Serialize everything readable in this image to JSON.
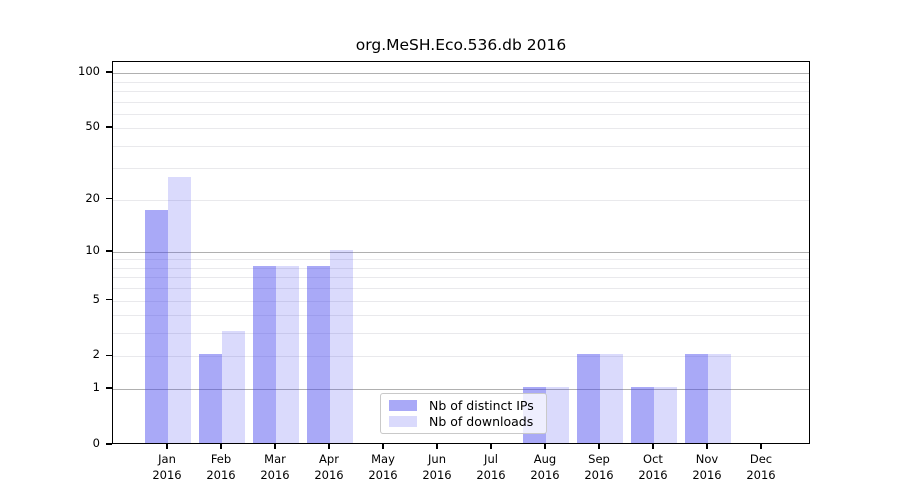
{
  "title": "org.MeSH.Eco.536.db 2016",
  "chart_data": {
    "type": "bar",
    "title": "org.MeSH.Eco.536.db 2016",
    "categories": [
      "Jan",
      "Feb",
      "Mar",
      "Apr",
      "May",
      "Jun",
      "Jul",
      "Aug",
      "Sep",
      "Oct",
      "Nov",
      "Dec"
    ],
    "year_label": "2016",
    "series": [
      {
        "name": "Nb of distinct IPs",
        "color": "#4444ee",
        "alpha": 0.46,
        "color_rgba": "rgba(68,68,238,0.46)",
        "values": [
          17,
          2,
          8,
          8,
          0,
          0,
          0,
          1,
          2,
          1,
          2,
          0
        ]
      },
      {
        "name": "Nb of downloads",
        "color": "#4444ee",
        "alpha": 0.2,
        "color_rgba": "rgba(68,68,238,0.20)",
        "values": [
          26,
          3,
          8,
          10,
          0,
          0,
          0,
          1,
          2,
          1,
          2,
          0
        ]
      }
    ],
    "xlabel": "",
    "ylabel": "",
    "yscale": "log1p",
    "ylim": [
      0,
      115
    ],
    "y_tick_labels": [
      "0",
      "1",
      "2",
      "5",
      "10",
      "20",
      "50",
      "100"
    ],
    "y_tick_values": [
      0,
      1,
      2,
      5,
      10,
      20,
      50,
      100
    ],
    "grid_major": [
      1,
      10,
      100
    ],
    "grid_minor": [
      2,
      3,
      4,
      5,
      6,
      7,
      8,
      9,
      20,
      30,
      40,
      50,
      60,
      70,
      80,
      90
    ],
    "grid": "on",
    "legend_position": "lower center",
    "legend_entries": [
      "Nb of distinct IPs",
      "Nb of downloads"
    ]
  }
}
